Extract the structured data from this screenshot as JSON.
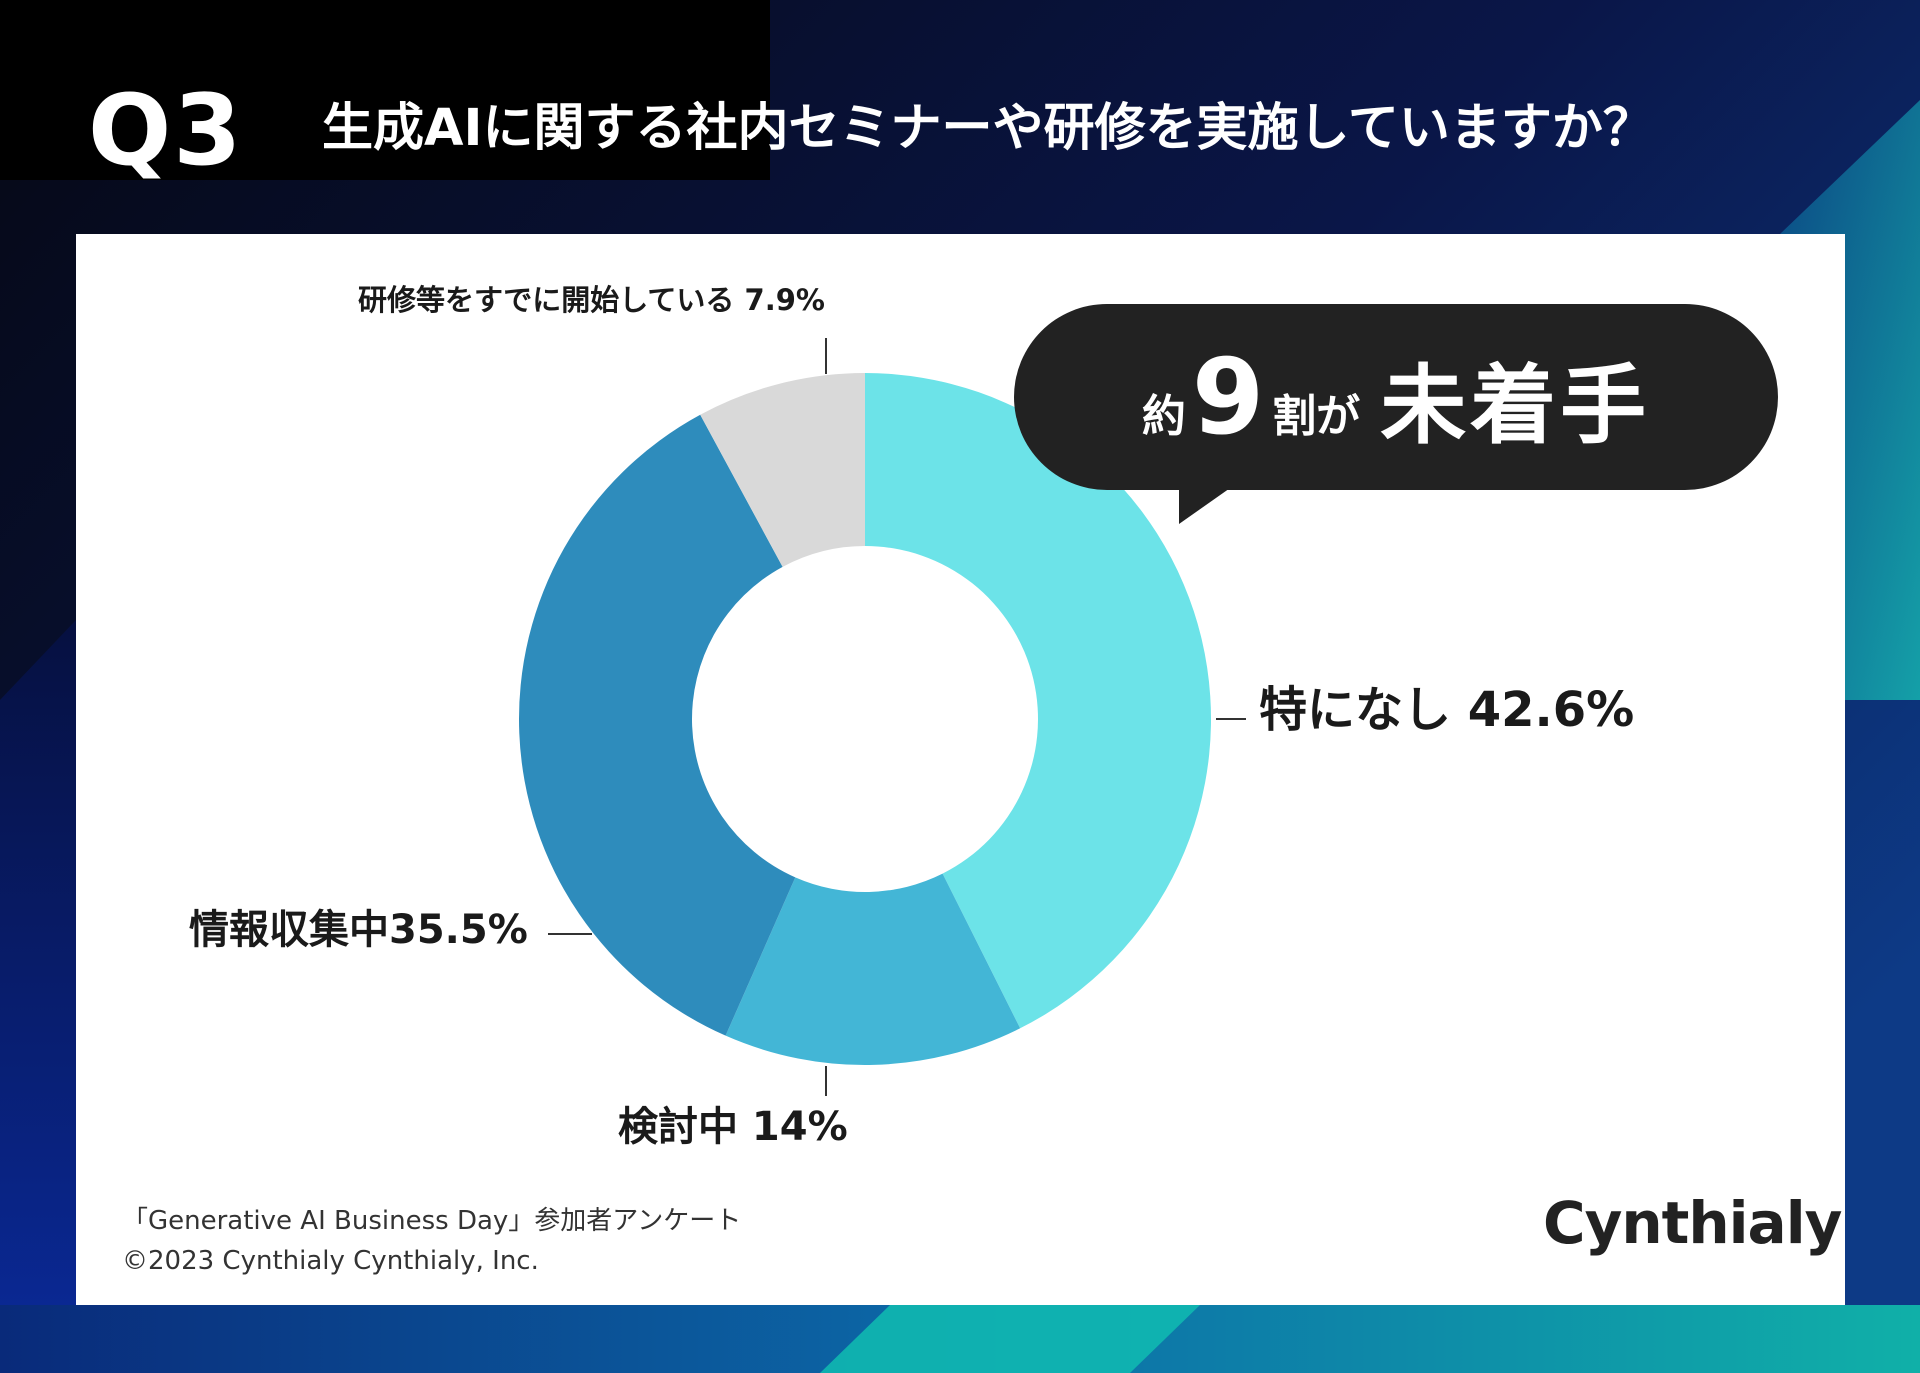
{
  "header": {
    "q_label": "Q3",
    "question": "生成AIに関する社内セミナーや研修を実施していますか？"
  },
  "chart_data": {
    "type": "pie",
    "variant": "donut",
    "title": "生成AIに関する社内セミナーや研修を実施していますか？",
    "slices": [
      {
        "name": "特になし",
        "value": 42.6,
        "label": "特になし 42.6%",
        "color": "#6ce3e8"
      },
      {
        "name": "検討中",
        "value": 14,
        "label": "検討中 14%",
        "color": "#43b6d6"
      },
      {
        "name": "情報収集中",
        "value": 35.5,
        "label": "情報収集中35.5%",
        "color": "#2e8cbc"
      },
      {
        "name": "研修等をすでに開始している",
        "value": 7.9,
        "label": "研修等をすでに開始している 7.9%",
        "color": "#d9d9d9"
      }
    ]
  },
  "callout": {
    "prefix": "約",
    "number": "9",
    "suffix": "割が",
    "main": "未着手"
  },
  "footer": {
    "source_line1": "「Generative AI Business Day」参加者アンケート",
    "source_line2": "©2023 Cynthialy Cynthialy, Inc.",
    "logo": "Cynthialy"
  },
  "colors": {
    "panel_bg": "#ffffff",
    "callout_bg": "#222222",
    "text_dark": "#1a1a1a"
  }
}
